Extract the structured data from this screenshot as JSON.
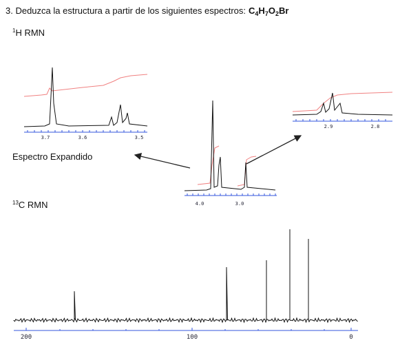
{
  "title": {
    "prefix": "3. Deduzca la estructura a partir de los siguientes espectros:",
    "formula": [
      "C",
      "4",
      "H",
      "7",
      "O",
      "2",
      "Br"
    ]
  },
  "h_nmr": {
    "sup": "1",
    "text": "H RMN",
    "left_ticks": [
      "3.7",
      "3.6",
      "3.5"
    ],
    "main_ticks": [
      "4.0",
      "3.0"
    ],
    "right_ticks": [
      "2.9",
      "2.8"
    ]
  },
  "expanded_label": "Espectro Expandido",
  "c_nmr": {
    "sup": "13",
    "text": "C RMN",
    "ticks": [
      "200",
      "100",
      "0"
    ]
  }
}
